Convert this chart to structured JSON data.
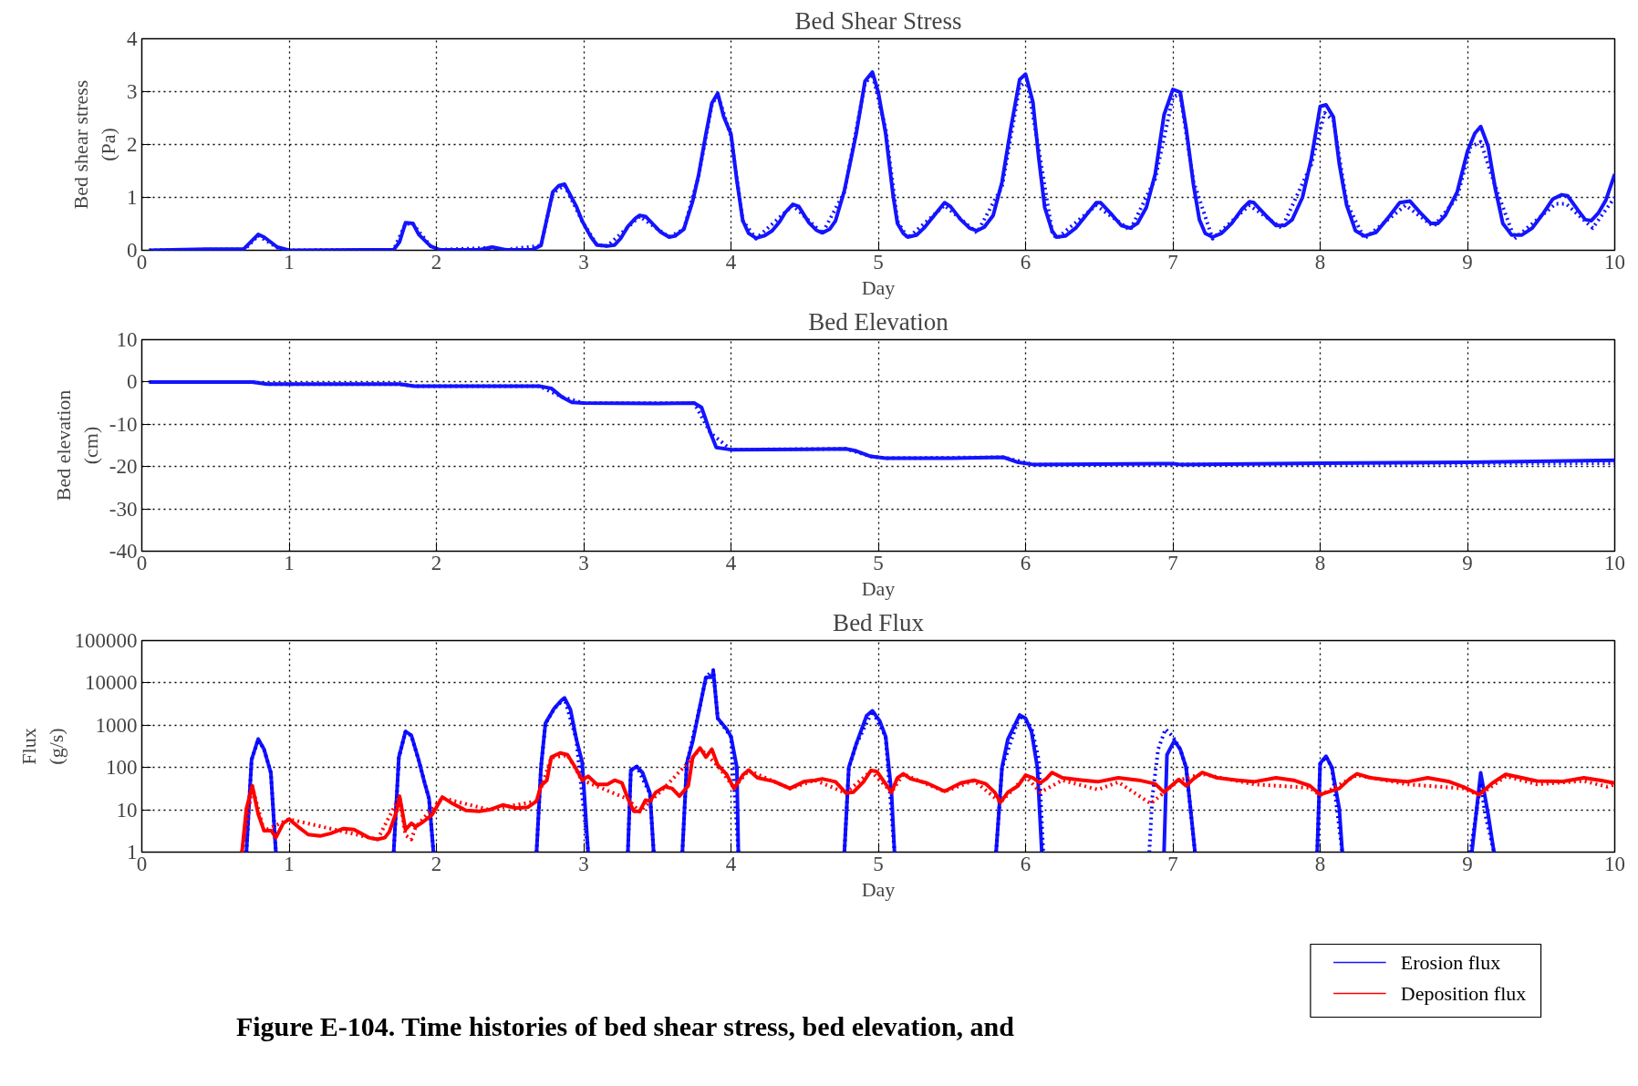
{
  "chart_data": [
    {
      "type": "line",
      "title": "Bed Shear Stress",
      "xlabel": "Day",
      "ylabel": "Bed shear stress\n(Pa)",
      "xlim": [
        0,
        10
      ],
      "xticks": [
        0,
        1,
        2,
        3,
        4,
        5,
        6,
        7,
        8,
        9,
        10
      ],
      "ylim": [
        0,
        4
      ],
      "yticks": [
        0,
        1,
        2,
        3,
        4
      ],
      "grid": true,
      "series": [
        {
          "color": "#1414ff",
          "line_style": "solid",
          "x": [
            0.05,
            0.44,
            0.69,
            0.79,
            0.83,
            0.92,
            1.0,
            1.51,
            1.71,
            1.75,
            1.79,
            1.84,
            1.88,
            1.96,
            2.02,
            2.29,
            2.38,
            2.47,
            2.65,
            2.71,
            2.79,
            2.83,
            2.87,
            2.95,
            2.99,
            3.05,
            3.09,
            3.16,
            3.21,
            3.25,
            3.3,
            3.35,
            3.38,
            3.42,
            3.52,
            3.58,
            3.62,
            3.68,
            3.74,
            3.78,
            3.83,
            3.87,
            3.91,
            3.95,
            4.0,
            4.04,
            4.08,
            4.12,
            4.17,
            4.23,
            4.28,
            4.33,
            4.37,
            4.42,
            4.46,
            4.53,
            4.58,
            4.62,
            4.67,
            4.71,
            4.77,
            4.85,
            4.91,
            4.96,
            5.0,
            5.05,
            5.1,
            5.13,
            5.17,
            5.2,
            5.26,
            5.31,
            5.38,
            5.45,
            5.49,
            5.56,
            5.62,
            5.67,
            5.72,
            5.78,
            5.84,
            5.9,
            5.96,
            6.0,
            6.05,
            6.09,
            6.13,
            6.18,
            6.21,
            6.27,
            6.34,
            6.41,
            6.48,
            6.51,
            6.59,
            6.65,
            6.71,
            6.76,
            6.82,
            6.88,
            6.94,
            7.0,
            7.05,
            7.09,
            7.14,
            7.18,
            7.22,
            7.27,
            7.33,
            7.4,
            7.47,
            7.52,
            7.55,
            7.63,
            7.7,
            7.76,
            7.81,
            7.88,
            7.94,
            8.0,
            8.04,
            8.09,
            8.13,
            8.18,
            8.24,
            8.3,
            8.38,
            8.46,
            8.54,
            8.61,
            8.68,
            8.75,
            8.8,
            8.85,
            8.93,
            9.0,
            9.05,
            9.09,
            9.14,
            9.19,
            9.24,
            9.3,
            9.37,
            9.44,
            9.51,
            9.58,
            9.64,
            9.68,
            9.75,
            9.8,
            9.84,
            9.89,
            9.94,
            10.0
          ],
          "values": [
            0,
            0.02,
            0.02,
            0.3,
            0.25,
            0.06,
            0,
            0.01,
            0.01,
            0.16,
            0.52,
            0.51,
            0.3,
            0.08,
            0.01,
            0.01,
            0.06,
            0.01,
            0.01,
            0.09,
            1.1,
            1.22,
            1.25,
            0.83,
            0.55,
            0.25,
            0.1,
            0.08,
            0.1,
            0.22,
            0.45,
            0.6,
            0.66,
            0.64,
            0.35,
            0.25,
            0.27,
            0.4,
            0.93,
            1.42,
            2.2,
            2.78,
            2.97,
            2.53,
            2.2,
            1.32,
            0.56,
            0.32,
            0.23,
            0.28,
            0.37,
            0.54,
            0.72,
            0.87,
            0.83,
            0.52,
            0.38,
            0.33,
            0.4,
            0.56,
            1.13,
            2.2,
            3.2,
            3.37,
            2.99,
            2.21,
            1.05,
            0.51,
            0.32,
            0.25,
            0.29,
            0.42,
            0.66,
            0.9,
            0.83,
            0.58,
            0.42,
            0.37,
            0.44,
            0.66,
            1.29,
            2.31,
            3.23,
            3.33,
            2.8,
            1.73,
            0.81,
            0.37,
            0.25,
            0.27,
            0.42,
            0.66,
            0.9,
            0.9,
            0.66,
            0.47,
            0.42,
            0.51,
            0.81,
            1.44,
            2.56,
            3.04,
            2.99,
            2.31,
            1.24,
            0.58,
            0.32,
            0.25,
            0.32,
            0.51,
            0.78,
            0.92,
            0.9,
            0.66,
            0.47,
            0.47,
            0.58,
            1.0,
            1.73,
            2.72,
            2.75,
            2.52,
            1.63,
            0.85,
            0.37,
            0.27,
            0.34,
            0.61,
            0.9,
            0.93,
            0.71,
            0.51,
            0.51,
            0.66,
            1.1,
            1.87,
            2.21,
            2.34,
            1.97,
            1.15,
            0.51,
            0.29,
            0.29,
            0.42,
            0.68,
            0.97,
            1.05,
            1.03,
            0.76,
            0.58,
            0.56,
            0.71,
            0.95,
            1.44
          ]
        },
        {
          "color": "#1414ff",
          "line_style": "dotted",
          "x": [
            0.05,
            0.7,
            0.79,
            0.92,
            1.0,
            1.71,
            1.79,
            1.84,
            1.96,
            2.02,
            2.38,
            2.47,
            2.71,
            2.79,
            2.87,
            2.99,
            3.09,
            3.16,
            3.38,
            3.58,
            3.68,
            3.78,
            3.87,
            3.91,
            4.0,
            4.08,
            4.17,
            4.42,
            4.62,
            4.77,
            4.91,
            4.96,
            5.05,
            5.13,
            5.2,
            5.45,
            5.67,
            5.84,
            5.96,
            6.01,
            6.09,
            6.18,
            6.21,
            6.48,
            6.71,
            6.88,
            7.0,
            7.05,
            7.14,
            7.27,
            7.52,
            7.74,
            7.94,
            8.03,
            8.09,
            8.18,
            8.3,
            8.58,
            8.77,
            8.93,
            9.02,
            9.09,
            9.19,
            9.32,
            9.6,
            9.67,
            9.85,
            10.0
          ],
          "values": [
            0,
            0.02,
            0.28,
            0.05,
            0,
            0.01,
            0.5,
            0.5,
            0.08,
            0.01,
            0.05,
            0.01,
            0.09,
            1.08,
            1.23,
            0.55,
            0.1,
            0.08,
            0.64,
            0.25,
            0.4,
            1.4,
            2.75,
            2.95,
            2.15,
            0.56,
            0.22,
            0.85,
            0.32,
            1.1,
            3.15,
            3.33,
            2.3,
            0.55,
            0.23,
            0.85,
            0.33,
            1.2,
            3.1,
            3.2,
            1.9,
            0.35,
            0.22,
            0.85,
            0.38,
            1.35,
            2.9,
            2.95,
            1.3,
            0.22,
            0.85,
            0.42,
            1.62,
            2.6,
            2.45,
            0.9,
            0.22,
            0.85,
            0.45,
            1.0,
            1.95,
            2.05,
            1.2,
            0.22,
            0.88,
            0.88,
            0.42,
            1.0
          ]
        }
      ]
    },
    {
      "type": "line",
      "title": "Bed Elevation",
      "xlabel": "Day",
      "ylabel": "Bed elevation\n(cm)",
      "xlim": [
        0,
        10
      ],
      "xticks": [
        0,
        1,
        2,
        3,
        4,
        5,
        6,
        7,
        8,
        9,
        10
      ],
      "ylim": [
        -40,
        10
      ],
      "yticks": [
        -40,
        -30,
        -20,
        -10,
        0,
        10
      ],
      "grid": true,
      "series": [
        {
          "color": "#1414ff",
          "line_style": "solid",
          "x": [
            0.05,
            0.75,
            0.85,
            1.75,
            1.85,
            2.7,
            2.78,
            2.85,
            2.92,
            3.0,
            3.5,
            3.75,
            3.8,
            3.86,
            3.9,
            4.0,
            4.5,
            4.78,
            4.85,
            4.95,
            5.05,
            5.5,
            5.85,
            5.95,
            6.05,
            7.0,
            7.05,
            8.0,
            9.0,
            10.0
          ],
          "values": [
            0,
            0,
            -0.5,
            -0.5,
            -1,
            -1,
            -1.5,
            -3.5,
            -4.8,
            -5.0,
            -5.1,
            -5.0,
            -6,
            -12,
            -15.5,
            -16,
            -15.9,
            -15.8,
            -16.3,
            -17.6,
            -18,
            -18,
            -17.8,
            -19,
            -19.5,
            -19.3,
            -19.5,
            -19.2,
            -19,
            -18.5
          ]
        },
        {
          "color": "#1414ff",
          "line_style": "dotted",
          "x": [
            0.05,
            0.75,
            0.85,
            1.75,
            1.85,
            2.7,
            2.85,
            3.0,
            3.75,
            3.86,
            4.0,
            4.78,
            4.95,
            5.05,
            5.85,
            6.05,
            7.0,
            8.0,
            9.0,
            10.0
          ],
          "values": [
            0,
            0,
            -0.5,
            -0.5,
            -1,
            -1,
            -3.5,
            -5.0,
            -5.0,
            -12,
            -16,
            -15.8,
            -17.6,
            -18,
            -17.8,
            -19.5,
            -19.5,
            -19.4,
            -19.3,
            -19.2
          ]
        }
      ]
    },
    {
      "type": "line",
      "title": "Bed Flux",
      "xlabel": "Day",
      "ylabel": "Flux\n(g/s)",
      "xlim": [
        0,
        10
      ],
      "xticks": [
        0,
        1,
        2,
        3,
        4,
        5,
        6,
        7,
        8,
        9,
        10
      ],
      "ylim": [
        1,
        100000
      ],
      "yticks": [
        1,
        10,
        100,
        1000,
        10000,
        100000
      ],
      "grid": true,
      "log": "y",
      "legend": "bottom right",
      "annotations": [
        "Figure E-104.  Time histories of bed shear stress, bed elevation, and"
      ],
      "series": [
        {
          "name": "Erosion flux",
          "color": "#1414ff",
          "line_style": "solid",
          "x": [
            0.71,
            0.745,
            0.79,
            0.83,
            0.876,
            0.91,
            0.95,
            1.71,
            1.745,
            1.79,
            1.83,
            1.88,
            1.92,
            1.95,
            1.98,
            2.3,
            2.68,
            2.71,
            2.74,
            2.8,
            2.85,
            2.87,
            2.91,
            2.95,
            2.99,
            3.03,
            3.1,
            3.3,
            3.32,
            3.36,
            3.4,
            3.45,
            3.475,
            3.6,
            3.67,
            3.7,
            3.74,
            3.79,
            3.83,
            3.87,
            3.88,
            3.91,
            3.97,
            4.0,
            4.04,
            4.05,
            4.4,
            4.77,
            4.8,
            4.85,
            4.92,
            4.96,
            5.01,
            5.05,
            5.09,
            5.11,
            5.5,
            5.8,
            5.84,
            5.88,
            5.96,
            6.0,
            6.04,
            6.08,
            6.11,
            6.5,
            6.94,
            6.96,
            7.01,
            7.05,
            7.09,
            7.12,
            7.15,
            7.5,
            7.98,
            8.0,
            8.04,
            8.08,
            8.13,
            8.15,
            8.6,
            9.03,
            9.09,
            9.14,
            9.18
          ],
          "values": [
            1,
            152,
            470,
            270,
            75,
            1,
            null,
            1,
            175,
            710,
            575,
            150,
            43,
            18.6,
            1,
            null,
            1,
            100,
            1100,
            2500,
            3900,
            4400,
            2340,
            470,
            132,
            1,
            null,
            1,
            87,
            105,
            75,
            24.5,
            1,
            null,
            1,
            125,
            410,
            2900,
            13500,
            13500,
            19000,
            1450,
            810,
            540,
            100,
            1,
            null,
            1,
            100,
            355,
            1660,
            2190,
            1260,
            540,
            25,
            1,
            null,
            1,
            100,
            470,
            1740,
            1450,
            710,
            100,
            1,
            null,
            1,
            200,
            430,
            270,
            100,
            10.5,
            1,
            null,
            1,
            125,
            185,
            100,
            10.5,
            1,
            null,
            1,
            75,
            8,
            1
          ]
        },
        {
          "color": "#0000ff",
          "line_style": "dotted",
          "x": [
            0.71,
            0.745,
            0.79,
            0.83,
            0.876,
            0.91,
            0.95,
            1.71,
            1.745,
            1.79,
            1.83,
            1.88,
            1.95,
            1.98,
            2.3,
            2.68,
            2.71,
            2.74,
            2.8,
            2.87,
            2.95,
            3.03,
            3.1,
            3.3,
            3.32,
            3.36,
            3.45,
            3.475,
            3.6,
            3.67,
            3.7,
            3.79,
            3.83,
            3.88,
            3.91,
            4.0,
            4.05,
            4.4,
            4.77,
            4.8,
            4.85,
            4.96,
            5.05,
            5.11,
            5.5,
            5.8,
            5.84,
            5.96,
            6.04,
            6.09,
            6.12,
            6.5,
            6.84,
            6.86,
            6.9,
            6.95,
            7.0,
            7.05,
            7.09,
            7.15,
            7.5,
            7.98,
            8.0,
            8.04,
            8.08,
            8.15,
            8.6,
            9.02,
            9.09,
            9.12,
            9.18
          ],
          "values": [
            1,
            150,
            460,
            265,
            75,
            1,
            null,
            1,
            170,
            700,
            560,
            145,
            18,
            1,
            null,
            1,
            100,
            1080,
            2450,
            4300,
            460,
            1,
            null,
            1,
            85,
            105,
            24,
            1,
            null,
            1,
            122,
            2850,
            13800,
            20000,
            1450,
            530,
            1,
            null,
            1,
            98,
            350,
            2150,
            530,
            1,
            null,
            1,
            98,
            1700,
            900,
            150,
            1,
            null,
            1,
            19,
            270,
            810,
            540,
            270,
            100,
            1,
            null,
            1,
            120,
            180,
            98,
            1,
            null,
            1,
            43,
            8,
            1
          ]
        },
        {
          "name": "Deposition flux",
          "color": "#ff0000",
          "line_style": "solid",
          "x": [
            0.68,
            0.71,
            0.75,
            0.79,
            0.83,
            0.88,
            0.91,
            0.96,
            1.0,
            1.06,
            1.13,
            1.21,
            1.28,
            1.37,
            1.44,
            1.49,
            1.54,
            1.6,
            1.65,
            1.68,
            1.73,
            1.75,
            1.79,
            1.83,
            1.86,
            1.91,
            1.97,
            2.04,
            2.11,
            2.2,
            2.29,
            2.36,
            2.45,
            2.54,
            2.62,
            2.68,
            2.71,
            2.75,
            2.78,
            2.84,
            2.89,
            2.94,
            2.99,
            3.03,
            3.09,
            3.16,
            3.21,
            3.26,
            3.3,
            3.34,
            3.38,
            3.42,
            3.45,
            3.49,
            3.55,
            3.6,
            3.65,
            3.71,
            3.74,
            3.79,
            3.83,
            3.87,
            3.91,
            3.97,
            4.02,
            4.08,
            4.12,
            4.18,
            4.29,
            4.4,
            4.5,
            4.57,
            4.62,
            4.71,
            4.78,
            4.83,
            4.9,
            4.95,
            4.99,
            5.04,
            5.09,
            5.13,
            5.17,
            5.22,
            5.33,
            5.45,
            5.56,
            5.65,
            5.73,
            5.79,
            5.83,
            5.88,
            5.95,
            6.0,
            6.05,
            6.1,
            6.14,
            6.18,
            6.25,
            6.39,
            6.49,
            6.63,
            6.77,
            6.88,
            6.94,
            6.99,
            7.04,
            7.09,
            7.14,
            7.2,
            7.3,
            7.44,
            7.55,
            7.7,
            7.82,
            7.93,
            8.0,
            8.13,
            8.2,
            8.25,
            8.34,
            8.48,
            8.59,
            8.73,
            8.87,
            8.97,
            9.08,
            9.17,
            9.26,
            9.37,
            9.47,
            9.65,
            9.79,
            9.9,
            10.0
          ],
          "values": [
            1,
            10.5,
            37,
            8,
            3.2,
            3.2,
            2.2,
            4.8,
            6,
            4,
            2.6,
            2.4,
            2.75,
            3.6,
            3.4,
            2.75,
            2.2,
            2,
            2.2,
            3,
            9.2,
            21,
            3.4,
            4.8,
            4,
            5.2,
            7.6,
            20,
            14,
            9.7,
            9.2,
            10,
            13,
            11,
            11.5,
            16,
            37,
            50,
            175,
            220,
            200,
            105,
            50,
            62,
            40,
            40,
            50,
            43,
            18.5,
            9.2,
            9.2,
            17,
            16,
            26,
            35,
            32,
            21,
            37,
            175,
            290,
            175,
            270,
            115,
            69,
            32,
            66,
            87,
            57,
            47,
            32,
            47,
            50,
            54,
            46,
            25,
            26,
            46,
            85,
            81,
            46,
            26,
            57,
            71,
            54,
            43,
            27.5,
            43,
            50,
            41,
            26,
            15,
            26,
            37,
            66,
            57,
            43,
            54,
            76,
            57,
            50,
            46,
            57,
            50,
            41,
            26,
            37,
            52,
            37,
            54,
            76,
            57,
            50,
            46,
            57,
            50,
            37,
            23,
            32,
            54,
            71,
            57,
            50,
            46,
            57,
            47,
            35,
            23,
            43,
            69,
            57,
            48,
            47,
            57,
            50,
            43
          ]
        },
        {
          "color": "#ff0000",
          "line_style": "dotted",
          "x": [
            0.68,
            0.75,
            0.83,
            1.0,
            1.6,
            1.75,
            1.79,
            1.83,
            1.86,
            2.04,
            2.36,
            2.68,
            2.78,
            2.89,
            2.99,
            3.3,
            3.38,
            3.55,
            3.74,
            3.79,
            3.91,
            4.02,
            4.12,
            4.4,
            4.57,
            4.78,
            4.95,
            5.09,
            5.17,
            5.45,
            5.65,
            5.83,
            6.0,
            6.1,
            6.25,
            6.49,
            6.63,
            6.85,
            7.04,
            7.2,
            7.55,
            7.93,
            8.0,
            8.25,
            8.59,
            8.97,
            9.08,
            9.26,
            9.47,
            9.79,
            9.95,
            10.0
          ],
          "values": [
            1,
            35,
            3.2,
            6,
            2,
            20,
            2.5,
            2,
            4,
            19,
            10,
            16,
            170,
            195,
            50,
            18,
            9,
            34,
            170,
            280,
            110,
            33,
            85,
            32,
            50,
            25,
            82,
            26,
            70,
            27,
            49,
            15,
            62,
            26,
            50,
            30,
            45,
            14,
            50,
            70,
            40,
            33,
            22,
            66,
            40,
            32,
            22,
            62,
            40,
            48,
            35,
            40
          ]
        }
      ]
    }
  ]
}
